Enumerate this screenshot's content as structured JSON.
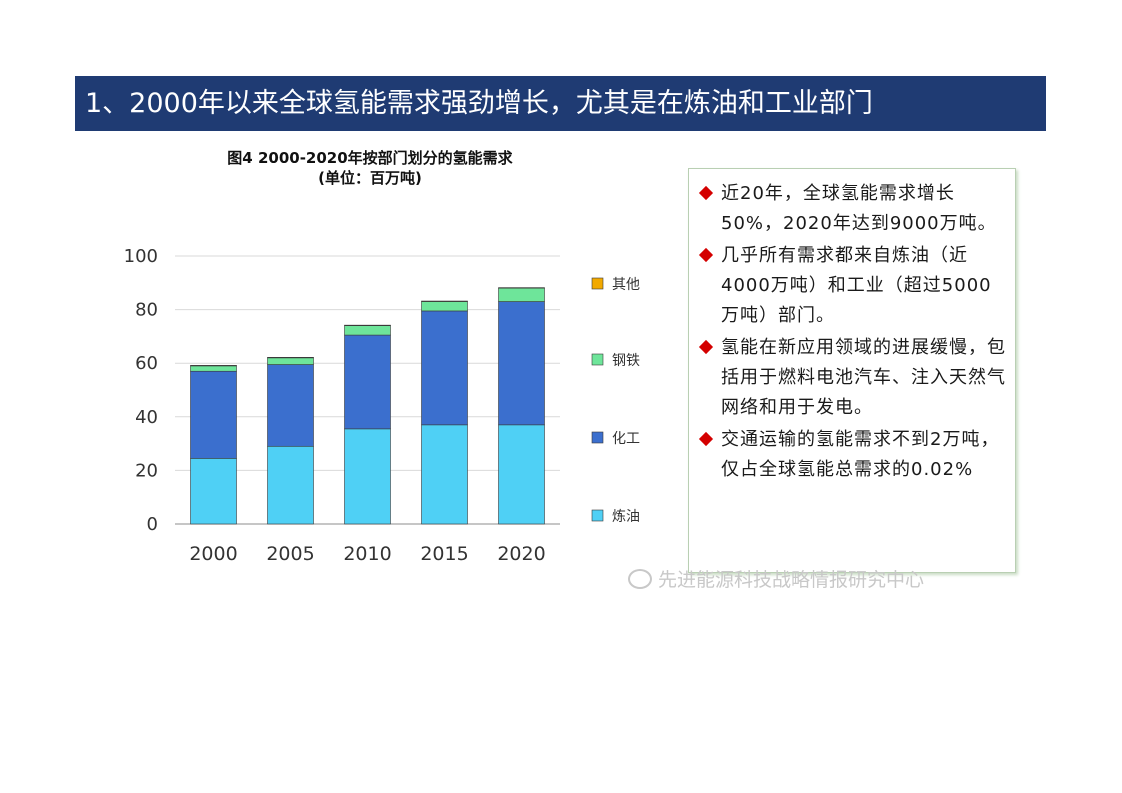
{
  "banner": {
    "title": "1、2000年以来全球氢能需求强劲增长，尤其是在炼油和工业部门"
  },
  "chart_data": {
    "type": "bar",
    "stacked": true,
    "title": "图4 2000-2020年按部门划分的氢能需求",
    "subtitle": "(单位：百万吨)",
    "categories": [
      "2000",
      "2005",
      "2010",
      "2015",
      "2020"
    ],
    "series": [
      {
        "name": "炼油",
        "color": "#4fd0f5",
        "values": [
          24.5,
          29,
          35.5,
          37,
          37
        ]
      },
      {
        "name": "化工",
        "color": "#3b6fce",
        "values": [
          32.5,
          30.5,
          35,
          42.5,
          46
        ]
      },
      {
        "name": "钢铁",
        "color": "#6ee59a",
        "values": [
          2,
          2.5,
          3.5,
          3.5,
          5
        ]
      },
      {
        "name": "其他",
        "color": "#f2a900",
        "values": [
          0.2,
          0.2,
          0.2,
          0.2,
          0.2
        ]
      }
    ],
    "ylim": [
      0,
      100
    ],
    "yticks": [
      0,
      20,
      40,
      60,
      80,
      100
    ],
    "grid": true,
    "legend_placement": "right"
  },
  "notes": [
    "近20年，全球氢能需求增长50%，2020年达到9000万吨。",
    "几乎所有需求都来自炼油（近4000万吨）和工业（超过5000万吨）部门。",
    "氢能在新应用领域的进展缓慢，包括用于燃料电池汽车、注入天然气网络和用于发电。",
    "交通运输的氢能需求不到2万吨，仅占全球氢能总需求的0.02%"
  ],
  "watermark": {
    "text": "先进能源科技战略情报研究中心",
    "icon": "wechat-icon"
  }
}
